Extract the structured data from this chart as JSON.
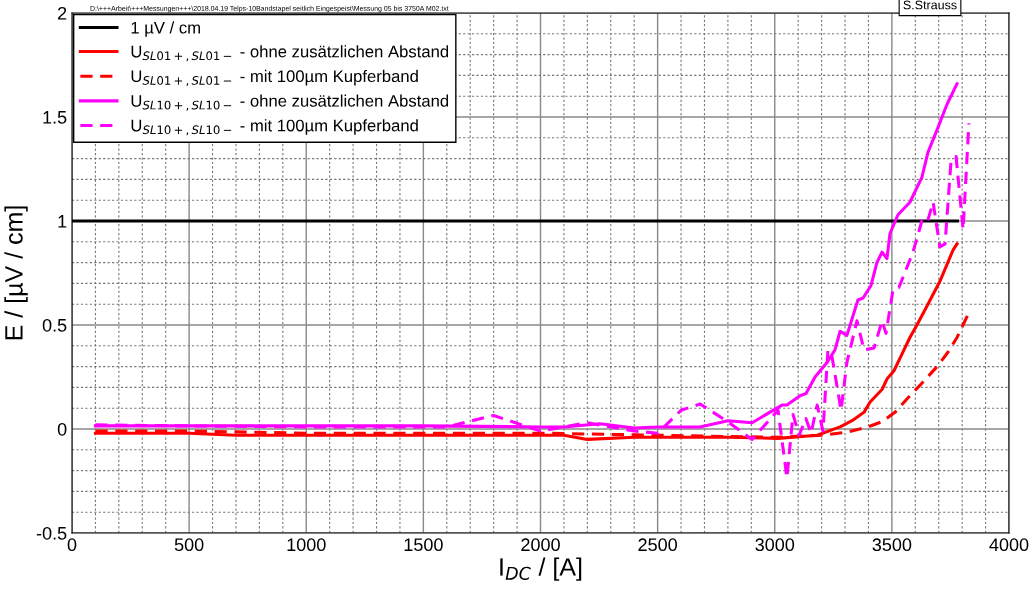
{
  "chart_data": {
    "type": "line",
    "xlabel": "I$_{DC}$ / [A]",
    "ylabel": "E / [µV / cm]",
    "annotations": [
      "D:\\+++Arbeit\\+++Messungen+++\\2018.04.19 Telps-10Bandstapel seitlich Eingespeist\\Messung 05 bis 3750A M02.txt",
      "S.Strauss"
    ],
    "xlim": [
      0,
      4000
    ],
    "xticks": [
      0,
      500,
      1000,
      1500,
      2000,
      2500,
      3000,
      3500,
      4000
    ],
    "ylim": [
      -0.5,
      2
    ],
    "yticks": [
      -0.5,
      0,
      0.5,
      1,
      1.5,
      2
    ],
    "grid": true,
    "legend": "top left",
    "series": [
      {
        "name": "1 µV / cm",
        "color": "#000000",
        "line_style": "solid",
        "x": [
          0,
          3780
        ],
        "values": [
          1,
          1
        ]
      },
      {
        "name": "U$_{SL01+,SL01−}$ - ohne zusätzlichen Abstand",
        "color": "#ff0000",
        "line_style": "solid",
        "x": [
          100,
          500,
          700,
          1000,
          1500,
          2000,
          2100,
          2200,
          2400,
          2600,
          2800,
          3014,
          3181,
          3279,
          3330,
          3381,
          3407,
          3458,
          3479,
          3509,
          3543,
          3577,
          3607,
          3654,
          3705,
          3761,
          3778
        ],
        "values": [
          -0.02,
          -0.02,
          -0.03,
          -0.03,
          -0.03,
          -0.03,
          -0.03,
          -0.05,
          -0.04,
          -0.04,
          -0.04,
          -0.045,
          -0.03,
          0.01,
          0.04,
          0.08,
          0.13,
          0.19,
          0.24,
          0.28,
          0.36,
          0.44,
          0.5,
          0.6,
          0.71,
          0.86,
          0.89
        ]
      },
      {
        "name": "U$_{SL01+,SL01−}$ - mit 100µm Kupferband",
        "color": "#ff0000",
        "line_style": "dashed",
        "x": [
          100,
          500,
          1000,
          1500,
          2000,
          2500,
          3000,
          3206,
          3308,
          3398,
          3458,
          3513,
          3569,
          3628,
          3693,
          3740,
          3778,
          3825
        ],
        "values": [
          -0.01,
          -0.01,
          -0.02,
          -0.02,
          -0.02,
          -0.03,
          -0.04,
          -0.03,
          -0.015,
          0.01,
          0.035,
          0.08,
          0.15,
          0.22,
          0.3,
          0.37,
          0.44,
          0.55
        ]
      },
      {
        "name": "U$_{SL10+,SL10−}$ - ohne zusätzlichen Abstand",
        "color": "#ff00ff",
        "line_style": "solid",
        "x": [
          100,
          500,
          1000,
          1500,
          2000,
          2100,
          2254,
          2400,
          2500,
          2681,
          2800,
          2903,
          3031,
          3052,
          3108,
          3133,
          3172,
          3223,
          3257,
          3279,
          3308,
          3355,
          3377,
          3411,
          3436,
          3458,
          3479,
          3492,
          3526,
          3577,
          3628,
          3654,
          3697,
          3735,
          3778
        ],
        "values": [
          0.015,
          0.015,
          0.015,
          0.015,
          0.01,
          0.01,
          0.025,
          0.005,
          0.01,
          0.01,
          0.04,
          0.03,
          0.115,
          0.115,
          0.16,
          0.17,
          0.25,
          0.32,
          0.38,
          0.47,
          0.45,
          0.62,
          0.63,
          0.69,
          0.8,
          0.85,
          0.82,
          0.94,
          1.03,
          1.09,
          1.21,
          1.33,
          1.45,
          1.56,
          1.66
        ]
      },
      {
        "name": "U$_{SL10+,SL10−}$ - mit 100µm Kupferband",
        "color": "#ff00ff",
        "line_style": "dashed",
        "x": [
          100,
          500,
          1000,
          1600,
          1800,
          2000,
          2200,
          2400,
          2500,
          2600,
          2681,
          2800,
          2903,
          3014,
          3052,
          3078,
          3104,
          3133,
          3155,
          3181,
          3206,
          3227,
          3244,
          3283,
          3308,
          3351,
          3381,
          3424,
          3458,
          3475,
          3505,
          3530,
          3590,
          3628,
          3650,
          3676,
          3705,
          3727,
          3752,
          3774,
          3804,
          3829
        ],
        "values": [
          0.02,
          0.015,
          0.01,
          0.01,
          0.065,
          -0.01,
          0.03,
          -0.01,
          -0.02,
          0.09,
          0.12,
          0.035,
          -0.05,
          0.09,
          -0.235,
          0.07,
          -0.03,
          0.05,
          -0.02,
          0.115,
          -0.01,
          0.38,
          0.35,
          0.09,
          0.32,
          0.52,
          0.38,
          0.39,
          0.52,
          0.46,
          0.67,
          0.68,
          0.85,
          1.0,
          0.99,
          1.09,
          0.875,
          0.89,
          1.28,
          1.31,
          0.96,
          1.47
        ]
      }
    ]
  }
}
